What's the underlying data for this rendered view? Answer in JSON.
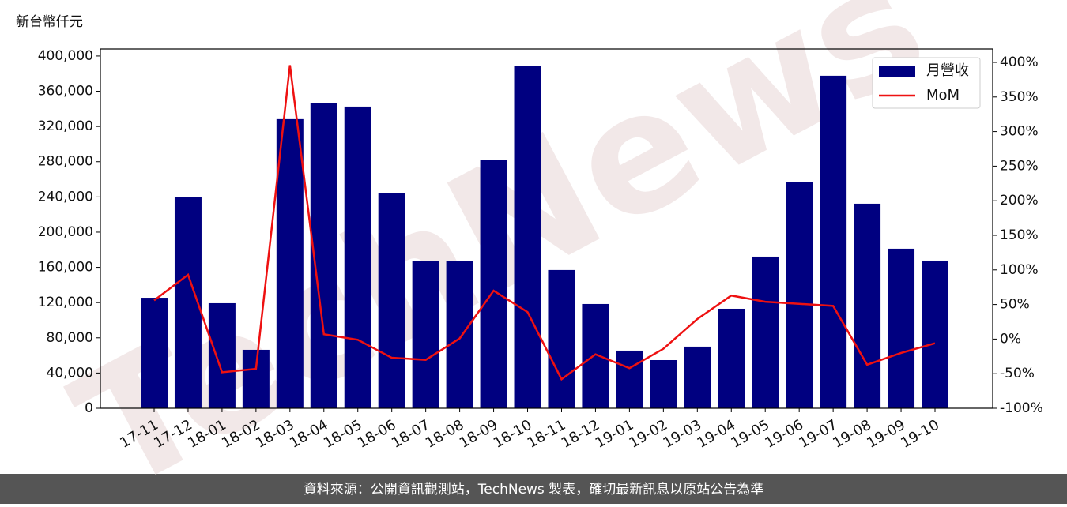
{
  "chart_data": {
    "type": "bar_line",
    "y_label": "新台幣仟元",
    "footer": "資料來源：公開資訊觀測站，TechNews 製表，確切最新訊息以原站公告為準",
    "watermark": "TechNews",
    "categories": [
      "17-11",
      "17-12",
      "18-01",
      "18-02",
      "18-03",
      "18-04",
      "18-05",
      "18-06",
      "18-07",
      "18-08",
      "18-09",
      "18-10",
      "18-11",
      "18-12",
      "19-01",
      "19-02",
      "19-03",
      "19-04",
      "19-05",
      "19-06",
      "19-07",
      "19-08",
      "19-09",
      "19-10"
    ],
    "series": [
      {
        "name": "月營收",
        "type": "bar",
        "color": "#000080",
        "values": [
          125500,
          239500,
          119300,
          66400,
          328300,
          347000,
          342600,
          244800,
          166800,
          166800,
          281600,
          388300,
          157000,
          118400,
          65500,
          54700,
          70000,
          113000,
          172200,
          256500,
          377600,
          232300,
          181200,
          167700
        ]
      },
      {
        "name": "MoM",
        "type": "line",
        "axis": "y2",
        "color": "#ee1111",
        "values": [
          56,
          93,
          -48,
          -43,
          396,
          7,
          -1,
          -27,
          -30,
          1,
          70,
          39,
          -58,
          -22,
          -42,
          -14,
          29,
          63,
          54,
          51,
          48,
          -37,
          -20,
          -6
        ]
      }
    ],
    "ylim": [
      0,
      408000
    ],
    "yticks": [
      0,
      {
        "value": 40000,
        "label": "40,000"
      },
      {
        "value": 80000,
        "label": "80,000"
      },
      {
        "value": 120000,
        "label": "120,000"
      },
      {
        "value": 160000,
        "label": "160,000"
      },
      {
        "value": 200000,
        "label": "200,000"
      },
      {
        "value": 240000,
        "label": "240,000"
      },
      {
        "value": 280000,
        "label": "280,000"
      },
      {
        "value": 320000,
        "label": "320,000"
      },
      {
        "value": 360000,
        "label": "360,000"
      },
      {
        "value": 400000,
        "label": "400,000"
      }
    ],
    "y2lim": [
      -100,
      419.4
    ],
    "y2ticks": [
      {
        "value": -100,
        "label": "-100%"
      },
      {
        "value": -50,
        "label": "-50%"
      },
      {
        "value": 0,
        "label": "0%"
      },
      {
        "value": 50,
        "label": "50%"
      },
      {
        "value": 100,
        "label": "100%"
      },
      {
        "value": 150,
        "label": "150%"
      },
      {
        "value": 200,
        "label": "200%"
      },
      {
        "value": 250,
        "label": "250%"
      },
      {
        "value": 300,
        "label": "300%"
      },
      {
        "value": 350,
        "label": "350%"
      },
      {
        "value": 400,
        "label": "400%"
      }
    ],
    "legend": "upper right"
  }
}
